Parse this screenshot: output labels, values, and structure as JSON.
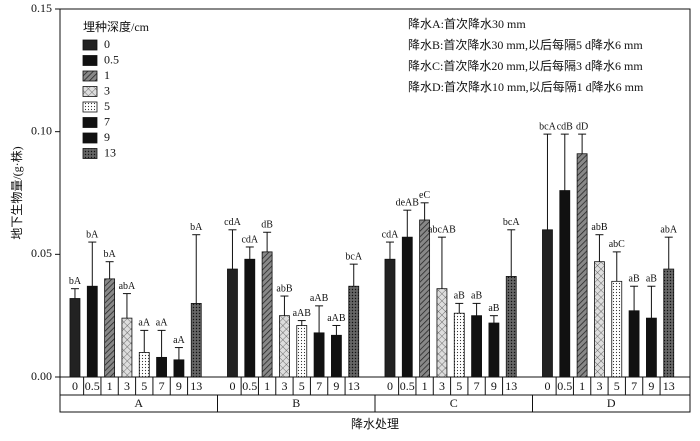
{
  "chart_data": {
    "type": "bar",
    "y_label": "地下生物量/(g·株)",
    "x_label": "降水处理",
    "legend_title": "埋种深度/cm",
    "annotations": [
      "降水A:首次降水30 mm",
      "降水B:首次降水30 mm,以后每隔5 d降水6 mm",
      "降水C:首次降水20 mm,以后每隔3 d降水6 mm",
      "降水D:首次降水10 mm,以后每隔1 d降水6 mm"
    ],
    "categories": [
      "A",
      "B",
      "C",
      "D"
    ],
    "ylim": [
      0,
      0.15
    ],
    "yticks": [
      {
        "value": 0,
        "label": "0.00"
      },
      {
        "value": 0.05,
        "label": "0.05"
      },
      {
        "value": 0.1,
        "label": "0.10"
      },
      {
        "value": 0.15,
        "label": "0.15"
      }
    ],
    "grid": false,
    "series": [
      {
        "name": "0",
        "color": "#222222",
        "hatch": "none",
        "values": [
          0.032,
          0.044,
          0.048,
          0.06
        ],
        "errors": [
          0.004,
          0.016,
          0.007,
          0.039
        ],
        "labels": [
          "bA",
          "cdA",
          "cdA",
          "bcA"
        ]
      },
      {
        "name": "0.5",
        "color": "#111111",
        "hatch": "none",
        "values": [
          0.037,
          0.048,
          0.057,
          0.076
        ],
        "errors": [
          0.018,
          0.005,
          0.011,
          0.023
        ],
        "labels": [
          "bA",
          "cdA",
          "deAB",
          "cdB"
        ]
      },
      {
        "name": "1",
        "color": "#777777",
        "hatch": "diagonal",
        "values": [
          0.04,
          0.051,
          0.064,
          0.091
        ],
        "errors": [
          0.007,
          0.008,
          0.007,
          0.008
        ],
        "labels": [
          "bA",
          "dB",
          "eC",
          "dD"
        ]
      },
      {
        "name": "3",
        "color": "#cccccc",
        "hatch": "cross",
        "values": [
          0.024,
          0.025,
          0.036,
          0.047
        ],
        "errors": [
          0.01,
          0.008,
          0.021,
          0.011
        ],
        "labels": [
          "abA",
          "abB",
          "abcAB",
          "abB"
        ]
      },
      {
        "name": "5",
        "color": "#ffffff",
        "hatch": "dots",
        "values": [
          0.01,
          0.021,
          0.026,
          0.039
        ],
        "errors": [
          0.009,
          0.002,
          0.004,
          0.012
        ],
        "labels": [
          "aA",
          "aAB",
          "aB",
          "abC"
        ]
      },
      {
        "name": "7",
        "color": "#111111",
        "hatch": "none",
        "values": [
          0.008,
          0.018,
          0.025,
          0.027
        ],
        "errors": [
          0.011,
          0.011,
          0.005,
          0.01
        ],
        "labels": [
          "aA",
          "aAB",
          "aB",
          "aB"
        ]
      },
      {
        "name": "9",
        "color": "#111111",
        "hatch": "none",
        "values": [
          0.007,
          0.017,
          0.022,
          0.024
        ],
        "errors": [
          0.005,
          0.004,
          0.003,
          0.013
        ],
        "labels": [
          "aA",
          "aAB",
          "aB",
          "aB"
        ]
      },
      {
        "name": "13",
        "color": "#666666",
        "hatch": "dots",
        "values": [
          0.03,
          0.037,
          0.041,
          0.044
        ],
        "errors": [
          0.028,
          0.009,
          0.019,
          0.013
        ],
        "labels": [
          "bA",
          "bcA",
          "bcA",
          "abA"
        ]
      }
    ]
  }
}
